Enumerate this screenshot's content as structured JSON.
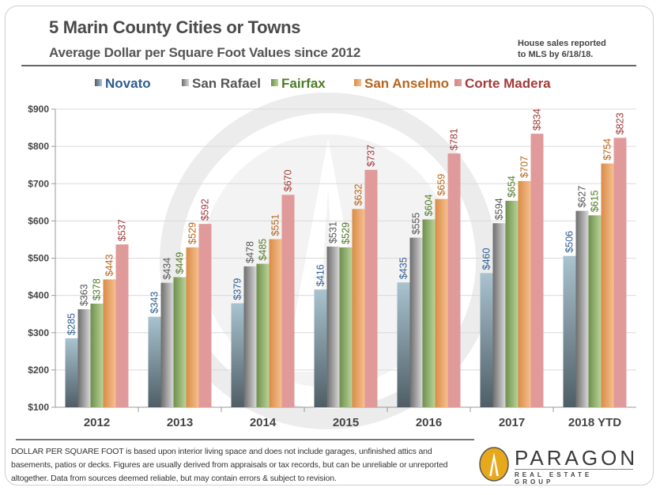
{
  "header": {
    "title": "5 Marin County Cities or Towns",
    "subtitle": "Average Dollar  per Square Foot Values since 2012",
    "note_line1": "House sales reported",
    "note_line2": "to MLS by 6/18/18."
  },
  "footer": {
    "disclaimer": "DOLLAR PER SQUARE FOOT is based upon interior living space and does not include garages, unfinished attics and basements, patios or decks. Figures are usually derived from appraisals or tax records, but can be unreliable or unreported altogether. Data from sources deemed reliable, but may contain errors & subject to revision.",
    "logo_name": "PARAGON",
    "logo_tagline": "REAL ESTATE GROUP",
    "logo_color": "#e8a81c"
  },
  "chart_data": {
    "type": "bar",
    "title": "5 Marin County Cities or Towns",
    "subtitle": "Average Dollar per Square Foot Values since 2012",
    "xlabel": "",
    "ylabel": "",
    "ylim": [
      100,
      900
    ],
    "yticks": [
      100,
      200,
      300,
      400,
      500,
      600,
      700,
      800,
      900
    ],
    "ytick_labels": [
      "$100",
      "$200",
      "$300",
      "$400",
      "$500",
      "$600",
      "$700",
      "$800",
      "$900"
    ],
    "grid": true,
    "legend_position": "top",
    "categories": [
      "2012",
      "2013",
      "2014",
      "2015",
      "2016",
      "2017",
      "2018 YTD"
    ],
    "series": [
      {
        "name": "Novato",
        "color_top": "#a9c3cf",
        "color_bottom": "#4f5e66",
        "label_color": "#2e5d92",
        "values": [
          285,
          343,
          379,
          416,
          435,
          460,
          506
        ]
      },
      {
        "name": "San Rafael",
        "color_top": "#d8d8d8",
        "color_bottom": "#6d6d6d",
        "label_color": "#555555",
        "values": [
          363,
          434,
          478,
          531,
          555,
          594,
          627
        ]
      },
      {
        "name": "Fairfax",
        "color_top": "#b9d49a",
        "color_bottom": "#6f8f4c",
        "label_color": "#4f7a27",
        "values": [
          378,
          449,
          485,
          529,
          604,
          654,
          615
        ]
      },
      {
        "name": "San Anselmo",
        "color_top": "#f6c08f",
        "color_bottom": "#d98c47",
        "label_color": "#b5651d",
        "values": [
          443,
          529,
          551,
          632,
          659,
          707,
          754
        ]
      },
      {
        "name": "Corte Madera",
        "color_top": "#e09a9a",
        "color_bottom": "#d68a8a",
        "label_color": "#a33a3a",
        "values": [
          537,
          592,
          670,
          737,
          781,
          834,
          823
        ]
      }
    ],
    "data_label_prefix": "$"
  }
}
